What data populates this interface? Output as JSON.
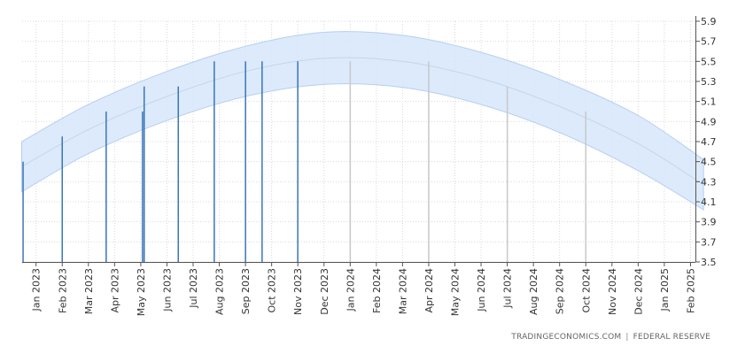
{
  "chart_data": {
    "type": "bar",
    "title": "",
    "xlabel": "",
    "ylabel": "",
    "ylim": [
      3.5,
      5.9
    ],
    "yticks": [
      3.5,
      3.7,
      3.9,
      4.1,
      4.3,
      4.5,
      4.7,
      4.9,
      5.1,
      5.3,
      5.5,
      5.7,
      5.9
    ],
    "y_axis_side": "right",
    "grid": true,
    "x_tick_labels": [
      "Jan 2023",
      "Feb 2023",
      "Mar 2023",
      "Apr 2023",
      "May 2023",
      "Jun 2023",
      "Jul 2023",
      "Aug 2023",
      "Sep 2023",
      "Oct 2023",
      "Nov 2023",
      "Dec 2023",
      "Jan 2024",
      "Feb 2024",
      "Mar 2024",
      "Apr 2024",
      "May 2024",
      "Jun 2024",
      "Jul 2024",
      "Aug 2024",
      "Sep 2024",
      "Oct 2024",
      "Nov 2024",
      "Dec 2024",
      "Jan 2025",
      "Feb 2025"
    ],
    "actual_bars": [
      {
        "date": "2022-12-15",
        "value": 4.5
      },
      {
        "date": "2023-02-01",
        "value": 4.75
      },
      {
        "date": "2023-03-22",
        "value": 5.0
      },
      {
        "date": "2023-05-03",
        "value": 5.0
      },
      {
        "date": "2023-05-05",
        "value": 5.25
      },
      {
        "date": "2023-06-14",
        "value": 5.25
      },
      {
        "date": "2023-07-26",
        "value": 5.5
      },
      {
        "date": "2023-09-01",
        "value": 5.5
      },
      {
        "date": "2023-09-20",
        "value": 5.5
      },
      {
        "date": "2023-11-01",
        "value": 5.5
      }
    ],
    "forecast_bars": [
      {
        "date": "2024-01-01",
        "value": 5.5
      },
      {
        "date": "2024-04-01",
        "value": 5.5
      },
      {
        "date": "2024-07-01",
        "value": 5.25
      },
      {
        "date": "2024-10-01",
        "value": 5.0
      }
    ],
    "forecast_band": {
      "dates": [
        "2022-12-15",
        "2023-03-01",
        "2023-06-01",
        "2023-09-01",
        "2023-12-01",
        "2024-03-01",
        "2024-06-01",
        "2024-09-01",
        "2024-12-01",
        "2025-02-15"
      ],
      "center": [
        4.45,
        4.82,
        5.15,
        5.4,
        5.53,
        5.5,
        5.33,
        5.05,
        4.68,
        4.27
      ],
      "upper": [
        4.7,
        5.07,
        5.4,
        5.65,
        5.79,
        5.76,
        5.59,
        5.32,
        4.96,
        4.52
      ],
      "lower": [
        4.2,
        4.58,
        4.91,
        5.15,
        5.27,
        5.24,
        5.07,
        4.79,
        4.41,
        4.02
      ]
    },
    "colors": {
      "actual": "#3a76b8",
      "forecast": "#c8c8c8",
      "band_fill": "#d6e6fa",
      "band_stroke": "#b6cff0",
      "center_line": "#c4d6ec",
      "grid": "#d9d9d9",
      "axis": "#555555"
    }
  },
  "footer": {
    "source_left": "TRADINGECONOMICS.COM",
    "separator": "|",
    "source_right": "FEDERAL RESERVE"
  }
}
